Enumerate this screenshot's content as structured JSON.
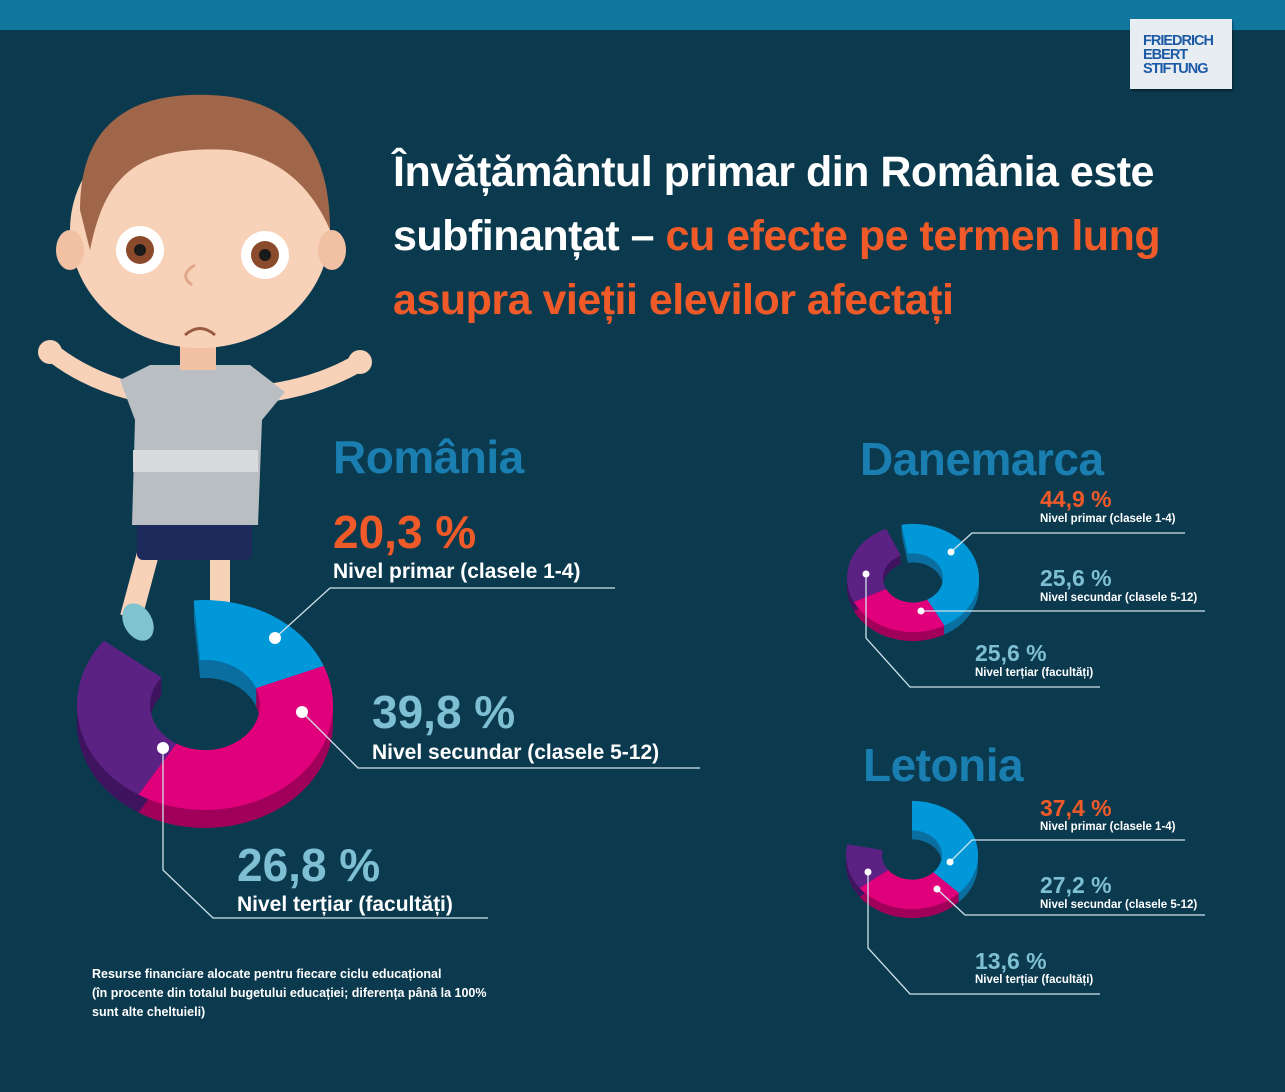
{
  "logo": {
    "line1": "FRIEDRICH",
    "line2": "EBERT",
    "line3": "STIFTUNG"
  },
  "title": {
    "part1": "Învățământul primar din România este subfinanțat – ",
    "part2": "cu efecte pe termen lung asupra vieții elevilor afectați"
  },
  "colors": {
    "primary": "#0098d8",
    "secondary": "#e0007c",
    "tertiary": "#5b2183",
    "accent": "#f05a28"
  },
  "chart_data": [
    {
      "type": "pie",
      "title": "România",
      "categories": [
        "Nivel primar (clasele 1-4)",
        "Nivel secundar (clasele 5-12)",
        "Nivel terțiar (facultăți)"
      ],
      "values": [
        20.3,
        39.8,
        26.8
      ],
      "labels": [
        "20,3 %",
        "39,8 %",
        "26,8 %"
      ]
    },
    {
      "type": "pie",
      "title": "Danemarca",
      "categories": [
        "Nivel primar (clasele 1-4)",
        "Nivel secundar (clasele 5-12)",
        "Nivel terțiar (facultăți)"
      ],
      "values": [
        44.9,
        25.6,
        25.6
      ],
      "labels": [
        "44,9  %",
        "25,6 %",
        "25,6 %"
      ]
    },
    {
      "type": "pie",
      "title": "Letonia",
      "categories": [
        "Nivel primar (clasele 1-4)",
        "Nivel secundar (clasele 5-12)",
        "Nivel terțiar (facultăți)"
      ],
      "values": [
        37.4,
        27.2,
        13.6
      ],
      "labels": [
        "37,4 %",
        "27,2 %",
        "13,6 %"
      ]
    }
  ],
  "footnote": {
    "line1": "Resurse financiare alocate pentru fiecare ciclu educațional",
    "line2": "(în procente din totalul bugetului educației; diferența până la 100%",
    "line3": "sunt alte cheltuieli)"
  }
}
